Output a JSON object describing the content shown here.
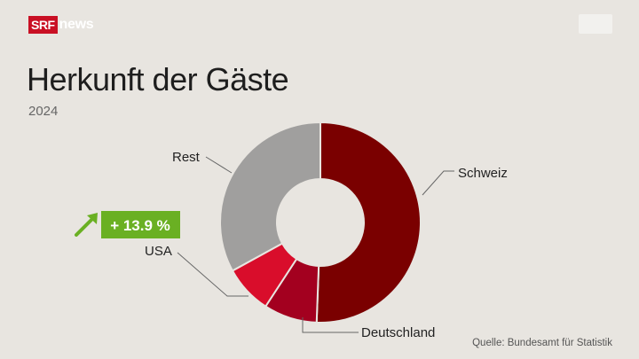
{
  "header": {
    "logo_srf": "SRF",
    "logo_news": "news"
  },
  "chart_data": {
    "type": "donut",
    "title": "Herkunft der Gäste",
    "subtitle": "2024",
    "categories": [
      "Schweiz",
      "Deutschland",
      "USA",
      "Rest"
    ],
    "values": [
      50.6,
      8.6,
      7.8,
      33.0
    ],
    "value_unit": "% (estimated share)",
    "colors": [
      "#7a0000",
      "#a3001f",
      "#d90d2b",
      "#a09f9e"
    ],
    "annotation": {
      "category": "USA",
      "text": "+ 13.9 %",
      "color": "#6ab023"
    },
    "source": "Quelle: Bundesamt für Statistik"
  }
}
